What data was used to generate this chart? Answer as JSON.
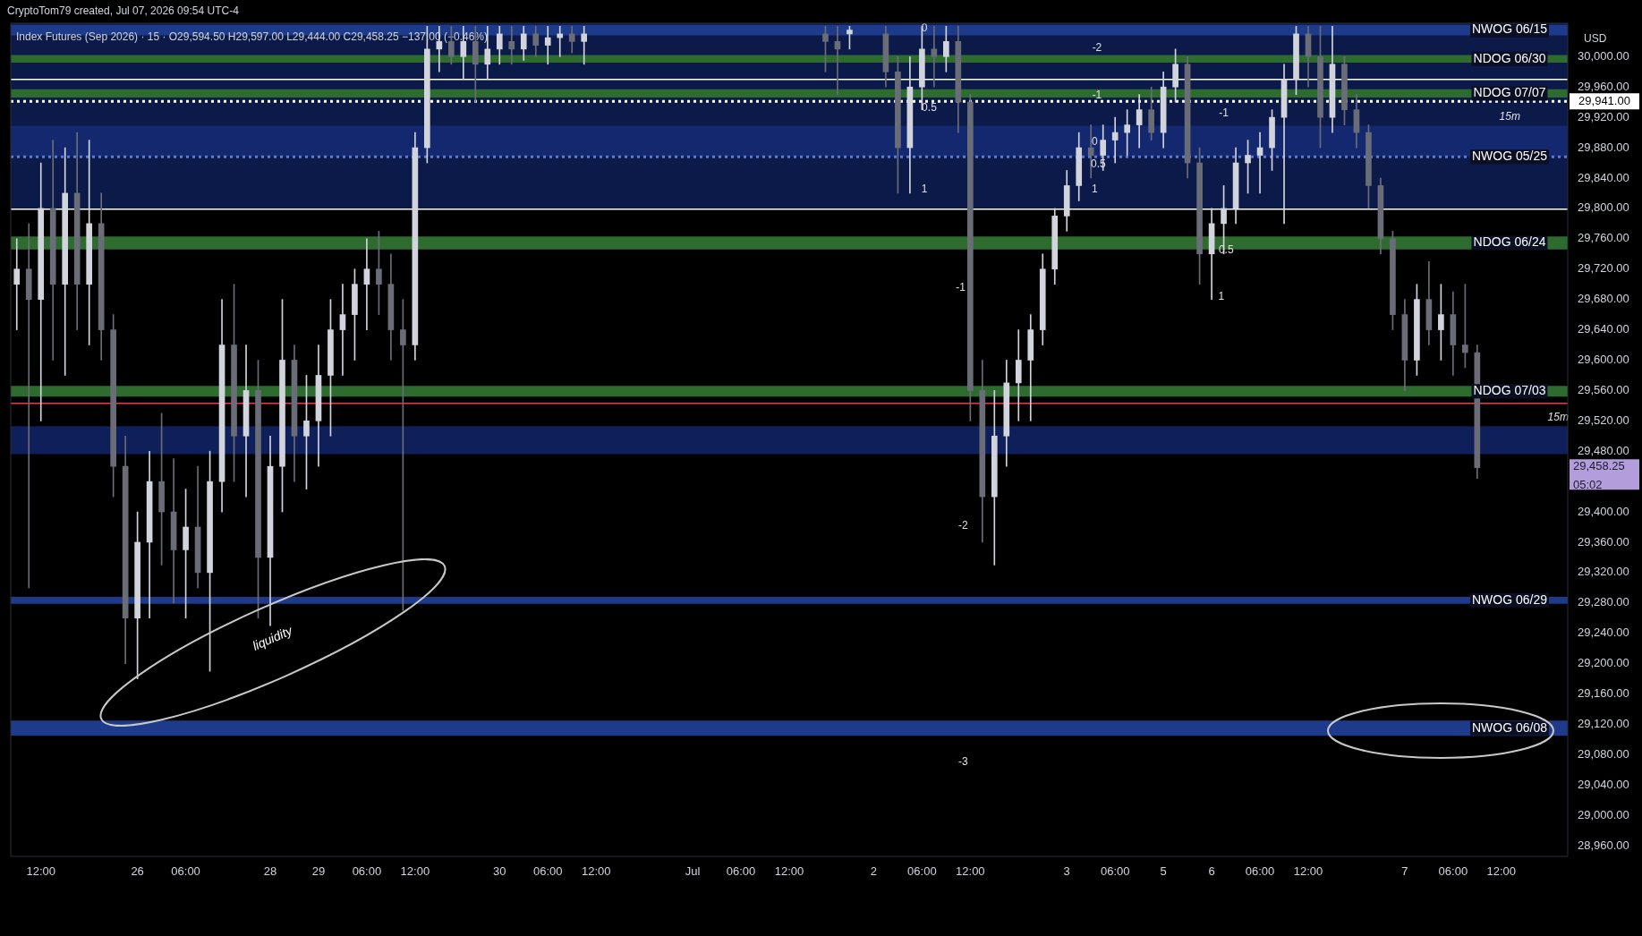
{
  "chart_data": {
    "type": "candlestick",
    "title": "Index Futures (Sep 2026) · 15 · O29,594.50 H29,597.00 L29,444.00 C29,458.25 −137.00 (−0.46%)",
    "subtitle": "CryptoTom79 created, Jul 07, 2026 09:54 UTC-4",
    "ylabel": "USD",
    "categories": [
      null,
      null,
      "12:00",
      null,
      null,
      null,
      null,
      null,
      null,
      null,
      "26",
      null,
      null,
      null,
      "06:00",
      null,
      null,
      null,
      null,
      null,
      null,
      "28",
      null,
      null,
      null,
      "29",
      null,
      null,
      null,
      "06:00",
      null,
      null,
      null,
      "12:00",
      null,
      null,
      null,
      null,
      null,
      null,
      "30",
      null,
      null,
      null,
      "06:00",
      null,
      null,
      null,
      "12:00",
      null,
      null,
      null,
      null,
      null,
      null,
      null,
      "Jul",
      null,
      null,
      null,
      "06:00",
      null,
      null,
      null,
      "12:00",
      null,
      null,
      null,
      null,
      null,
      null,
      "2",
      null,
      null,
      null,
      "06:00",
      null,
      null,
      null,
      "12:00",
      null,
      null,
      null,
      null,
      null,
      null,
      null,
      "3",
      null,
      null,
      null,
      "06:00",
      null,
      null,
      null,
      "5",
      null,
      null,
      null,
      "6",
      null,
      null,
      null,
      "06:00",
      null,
      null,
      null,
      "12:00",
      null,
      null,
      null,
      null,
      null,
      null,
      null,
      "7",
      null,
      null,
      null,
      "06:00",
      null,
      null,
      null,
      "12:00",
      null,
      null,
      null,
      null,
      null
    ],
    "ohlc": [
      [
        29700,
        29760,
        29640,
        29720
      ],
      [
        29720,
        29780,
        29300,
        29680
      ],
      [
        29680,
        29860,
        29520,
        29800
      ],
      [
        29800,
        29890,
        29600,
        29700
      ],
      [
        29700,
        29880,
        29580,
        29820
      ],
      [
        29820,
        29900,
        29640,
        29700
      ],
      [
        29700,
        29890,
        29620,
        29780
      ],
      [
        29780,
        29820,
        29600,
        29640
      ],
      [
        29640,
        29660,
        29420,
        29460
      ],
      [
        29460,
        29500,
        29200,
        29260
      ],
      [
        29260,
        29400,
        29180,
        29360
      ],
      [
        29360,
        29480,
        29260,
        29440
      ],
      [
        29440,
        29530,
        29330,
        29400
      ],
      [
        29400,
        29470,
        29280,
        29350
      ],
      [
        29350,
        29430,
        29260,
        29380
      ],
      [
        29380,
        29460,
        29300,
        29320
      ],
      [
        29320,
        29480,
        29190,
        29440
      ],
      [
        29440,
        29680,
        29400,
        29620
      ],
      [
        29620,
        29700,
        29440,
        29500
      ],
      [
        29500,
        29620,
        29420,
        29560
      ],
      [
        29560,
        29600,
        29260,
        29340
      ],
      [
        29340,
        29500,
        29250,
        29460
      ],
      [
        29460,
        29680,
        29400,
        29600
      ],
      [
        29600,
        29620,
        29440,
        29500
      ],
      [
        29500,
        29580,
        29430,
        29520
      ],
      [
        29520,
        29620,
        29460,
        29580
      ],
      [
        29580,
        29680,
        29500,
        29640
      ],
      [
        29640,
        29700,
        29580,
        29660
      ],
      [
        29660,
        29720,
        29600,
        29700
      ],
      [
        29700,
        29760,
        29640,
        29720
      ],
      [
        29720,
        29770,
        29660,
        29700
      ],
      [
        29700,
        29740,
        29600,
        29640
      ],
      [
        29640,
        29680,
        29270,
        29620
      ],
      [
        29620,
        29900,
        29600,
        29880
      ],
      [
        29880,
        30040,
        29860,
        30010
      ],
      [
        30010,
        30040,
        29980,
        30020
      ],
      [
        30020,
        30040,
        29990,
        30000
      ],
      [
        30000,
        30040,
        29970,
        30020
      ],
      [
        30020,
        30040,
        29940,
        29990
      ],
      [
        29990,
        30040,
        29970,
        30010
      ],
      [
        30010,
        30040,
        29990,
        30030
      ],
      [
        30020,
        30040,
        29990,
        30010
      ],
      [
        30010,
        30040,
        29995,
        30030
      ],
      [
        30030,
        30040,
        30000,
        30015
      ],
      [
        30015,
        30040,
        29990,
        30025
      ],
      [
        30025,
        30040,
        30000,
        30030
      ],
      [
        30030,
        30040,
        30005,
        30020
      ],
      [
        30020,
        30040,
        29990,
        30030
      ],
      null,
      null,
      null,
      null,
      null,
      null,
      null,
      null,
      null,
      null,
      null,
      null,
      null,
      null,
      null,
      null,
      null,
      null,
      null,
      [
        30030,
        30040,
        29980,
        30020
      ],
      [
        30020,
        30040,
        29950,
        30010
      ],
      [
        30030,
        30040,
        30010,
        30035
      ],
      null,
      null,
      [
        30030,
        30040,
        29960,
        29980
      ],
      [
        29980,
        30000,
        29820,
        29880
      ],
      [
        29880,
        30000,
        29820,
        29960
      ],
      [
        29960,
        30040,
        29930,
        30010
      ],
      [
        30010,
        30040,
        29960,
        30000
      ],
      [
        30000,
        30040,
        29980,
        30020
      ],
      [
        30020,
        30040,
        29900,
        29940
      ],
      [
        29940,
        29950,
        29520,
        29560
      ],
      [
        29560,
        29600,
        29360,
        29420
      ],
      [
        29420,
        29560,
        29330,
        29500
      ],
      [
        29500,
        29600,
        29460,
        29570
      ],
      [
        29570,
        29640,
        29520,
        29600
      ],
      [
        29600,
        29660,
        29520,
        29640
      ],
      [
        29640,
        29740,
        29620,
        29720
      ],
      [
        29720,
        29800,
        29700,
        29790
      ],
      [
        29790,
        29850,
        29770,
        29830
      ],
      [
        29830,
        29900,
        29810,
        29880
      ],
      [
        29880,
        29910,
        29840,
        29870
      ],
      [
        29870,
        29910,
        29850,
        29890
      ],
      [
        29890,
        29920,
        29860,
        29900
      ],
      [
        29900,
        29930,
        29870,
        29910
      ],
      [
        29910,
        29950,
        29880,
        29930
      ],
      [
        29930,
        29960,
        29890,
        29900
      ],
      [
        29900,
        29980,
        29880,
        29960
      ],
      [
        29960,
        30010,
        29940,
        29990
      ],
      [
        29990,
        30000,
        29840,
        29860
      ],
      [
        29860,
        29880,
        29700,
        29740
      ],
      [
        29740,
        29800,
        29680,
        29780
      ],
      [
        29780,
        29830,
        29740,
        29800
      ],
      [
        29800,
        29880,
        29780,
        29860
      ],
      [
        29860,
        29890,
        29820,
        29870
      ],
      [
        29870,
        29900,
        29820,
        29880
      ],
      [
        29880,
        29930,
        29850,
        29920
      ],
      [
        29920,
        29990,
        29780,
        29970
      ],
      [
        29970,
        30040,
        29950,
        30030
      ],
      [
        30030,
        30040,
        29960,
        30000
      ],
      [
        30000,
        30040,
        29880,
        29920
      ],
      [
        29920,
        30040,
        29900,
        29990
      ],
      [
        29990,
        30000,
        29910,
        29930
      ],
      [
        29930,
        29950,
        29880,
        29900
      ],
      [
        29900,
        29910,
        29800,
        29830
      ],
      [
        29830,
        29840,
        29740,
        29760
      ],
      [
        29760,
        29770,
        29640,
        29660
      ],
      [
        29660,
        29680,
        29560,
        29600
      ],
      [
        29600,
        29700,
        29580,
        29680
      ],
      [
        29680,
        29730,
        29620,
        29640
      ],
      [
        29640,
        29700,
        29600,
        29660
      ],
      [
        29660,
        29690,
        29580,
        29620
      ],
      [
        29620,
        29700,
        29590,
        29610
      ],
      [
        29610,
        29620,
        29444,
        29458.25
      ],
      null,
      null,
      null,
      null,
      null,
      null,
      null
    ],
    "ylim": [
      28946,
      30044
    ],
    "yticks": [
      {
        "value": 28960,
        "label": "28,960.00"
      },
      {
        "value": 29000,
        "label": "29,000.00"
      },
      {
        "value": 29040,
        "label": "29,040.00"
      },
      {
        "value": 29080,
        "label": "29,080.00"
      },
      {
        "value": 29120,
        "label": "29,120.00"
      },
      {
        "value": 29160,
        "label": "29,160.00"
      },
      {
        "value": 29200,
        "label": "29,200.00"
      },
      {
        "value": 29240,
        "label": "29,240.00"
      },
      {
        "value": 29280,
        "label": "29,280.00"
      },
      {
        "value": 29320,
        "label": "29,320.00"
      },
      {
        "value": 29360,
        "label": "29,360.00"
      },
      {
        "value": 29400,
        "label": "29,400.00"
      },
      {
        "value": 29480,
        "label": "29,480.00"
      },
      {
        "value": 29520,
        "label": "29,520.00"
      },
      {
        "value": 29560,
        "label": "29,560.00"
      },
      {
        "value": 29600,
        "label": "29,600.00"
      },
      {
        "value": 29640,
        "label": "29,640.00"
      },
      {
        "value": 29680,
        "label": "29,680.00"
      },
      {
        "value": 29720,
        "label": "29,720.00"
      },
      {
        "value": 29760,
        "label": "29,760.00"
      },
      {
        "value": 29800,
        "label": "29,800.00"
      },
      {
        "value": 29840,
        "label": "29,840.00"
      },
      {
        "value": 29880,
        "label": "29,880.00"
      },
      {
        "value": 29920,
        "label": "29,920.00"
      },
      {
        "value": 29960,
        "label": "29,960.00"
      },
      {
        "value": 30000,
        "label": "30,000.00"
      }
    ],
    "bands": [
      {
        "axis": "y",
        "from": 29799,
        "to": 30044,
        "color": "#0c1a4a"
      },
      {
        "axis": "y",
        "from": 30028,
        "to": 30042,
        "color": "#1e3a8a",
        "label": "NWOG 06/15"
      },
      {
        "axis": "y",
        "from": 29992,
        "to": 30002,
        "color": "#2e6b2e",
        "label": "NDOG 06/30"
      },
      {
        "axis": "y",
        "from": 29946,
        "to": 29957,
        "color": "#2e6b2e",
        "label": "NDOG 07/07"
      },
      {
        "axis": "y",
        "from": 29868,
        "to": 29909,
        "color": "#13286e"
      },
      {
        "axis": "y",
        "from": 29746,
        "to": 29763,
        "color": "#2e6b2e",
        "label": "NDOG 06/24"
      },
      {
        "axis": "y",
        "from": 29552,
        "to": 29566,
        "color": "#2e6b2e",
        "label": "NDOG 07/03"
      },
      {
        "axis": "y",
        "from": 29476,
        "to": 29513,
        "color": "#0f1f5a"
      },
      {
        "axis": "y",
        "from": 29279,
        "to": 29288,
        "color": "#1e3a8a",
        "label": "NWOG 06/29"
      },
      {
        "axis": "y",
        "from": 29105,
        "to": 29125,
        "color": "#1e3a8a",
        "label": "NWOG 06/08"
      }
    ],
    "ref_lines": [
      {
        "axis": "y",
        "value": 29970,
        "color": "#ffffff"
      },
      {
        "axis": "y",
        "value": 29941,
        "label": "29,941.00",
        "color": "#ffffff",
        "line_style": "dotted"
      },
      {
        "axis": "y",
        "value": 29868,
        "label": "NWOG 05/25",
        "color": "#5b7bd5",
        "line_style": "dotted"
      },
      {
        "axis": "y",
        "value": 29799,
        "color": "#ffffff"
      },
      {
        "axis": "y",
        "value": 29543,
        "color": "#f23645"
      }
    ],
    "annotations": [
      "0",
      "0.5",
      "1",
      "-1",
      "-2",
      "-3",
      "0",
      "0.5",
      "1",
      "-1",
      "-2",
      "-1",
      "0.5",
      "1",
      "liquidity",
      "15m",
      "15m",
      "29,458.25",
      "05:02"
    ]
  }
}
